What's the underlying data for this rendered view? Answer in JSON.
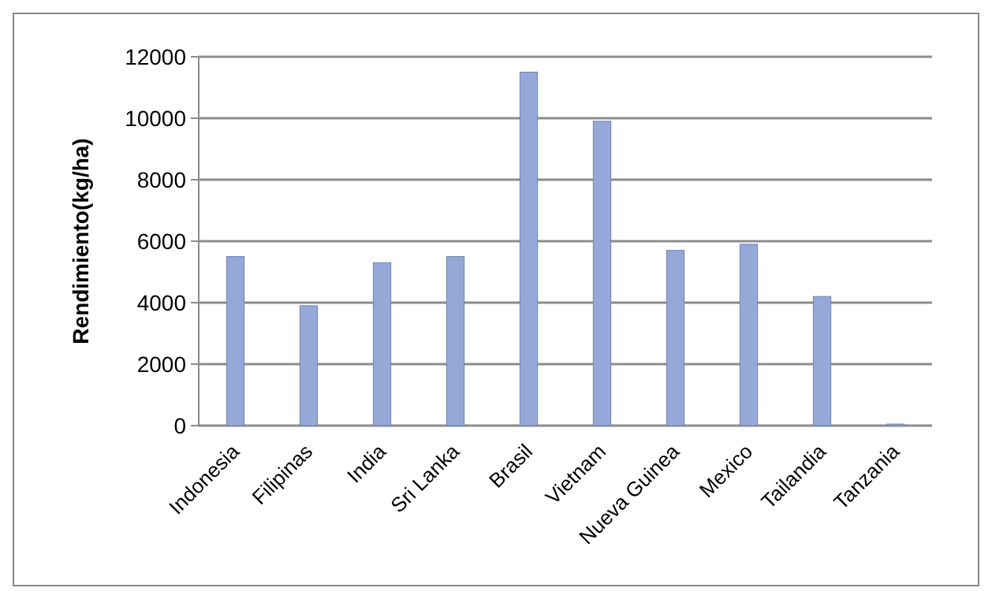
{
  "chart_data": {
    "type": "bar",
    "ylabel": "Rendimiento(kg/ha)",
    "categories": [
      "Indonesia",
      "Filipinas",
      "India",
      "Sri Lanka",
      "Brasil",
      "Vietnam",
      "Nueva Guinea",
      "Mexico",
      "Tailandia",
      "Tanzania"
    ],
    "values": [
      5500,
      3900,
      5300,
      5500,
      11500,
      9900,
      5700,
      5900,
      4200,
      50
    ],
    "color": "#95a8d8",
    "ylim": [
      0,
      12000
    ],
    "yticks": [
      0,
      2000,
      4000,
      6000,
      8000,
      10000,
      12000
    ],
    "grid": "y"
  }
}
